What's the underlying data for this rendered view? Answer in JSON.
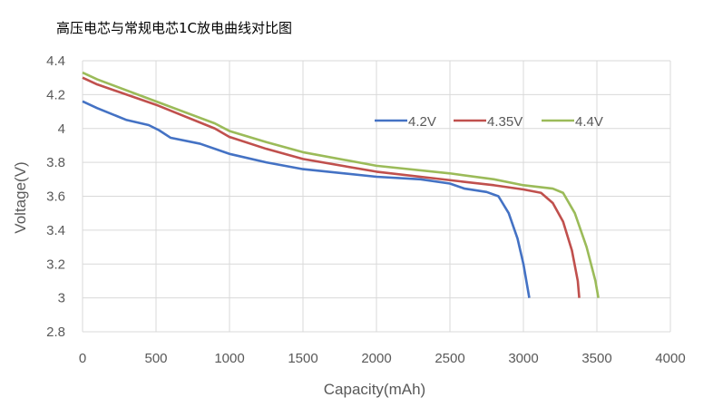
{
  "chart_data": {
    "type": "line",
    "title": "高压电芯与常规电芯1C放电曲线对比图",
    "xlabel": "Capacity(mAh)",
    "ylabel": "Voltage(V)",
    "xlim": [
      0,
      4000
    ],
    "ylim": [
      2.8,
      4.4
    ],
    "xticks": [
      "0",
      "500",
      "1000",
      "1500",
      "2000",
      "2500",
      "3000",
      "3500",
      "4000"
    ],
    "yticks": [
      "2.8",
      "3",
      "3.2",
      "3.4",
      "3.6",
      "3.8",
      "4",
      "4.2",
      "4.4"
    ],
    "grid": true,
    "legend": "top-right",
    "series": [
      {
        "name": "4.2V",
        "color": "#4472c4",
        "points": [
          [
            0,
            4.16
          ],
          [
            100,
            4.12
          ],
          [
            300,
            4.05
          ],
          [
            450,
            4.02
          ],
          [
            520,
            3.99
          ],
          [
            600,
            3.945
          ],
          [
            800,
            3.91
          ],
          [
            1000,
            3.85
          ],
          [
            1250,
            3.8
          ],
          [
            1500,
            3.76
          ],
          [
            2000,
            3.715
          ],
          [
            2300,
            3.7
          ],
          [
            2500,
            3.675
          ],
          [
            2600,
            3.645
          ],
          [
            2750,
            3.625
          ],
          [
            2830,
            3.6
          ],
          [
            2900,
            3.5
          ],
          [
            2960,
            3.35
          ],
          [
            3000,
            3.2
          ],
          [
            3030,
            3.05
          ],
          [
            3040,
            3.0
          ]
        ]
      },
      {
        "name": "4.35V",
        "color": "#c0504d",
        "points": [
          [
            0,
            4.3
          ],
          [
            100,
            4.26
          ],
          [
            500,
            4.14
          ],
          [
            900,
            4.0
          ],
          [
            1000,
            3.95
          ],
          [
            1250,
            3.88
          ],
          [
            1500,
            3.82
          ],
          [
            2000,
            3.745
          ],
          [
            2500,
            3.695
          ],
          [
            2800,
            3.665
          ],
          [
            3000,
            3.64
          ],
          [
            3120,
            3.62
          ],
          [
            3200,
            3.56
          ],
          [
            3270,
            3.45
          ],
          [
            3330,
            3.28
          ],
          [
            3370,
            3.1
          ],
          [
            3380,
            3.0
          ]
        ]
      },
      {
        "name": "4.4V",
        "color": "#9bbb59",
        "points": [
          [
            0,
            4.33
          ],
          [
            100,
            4.29
          ],
          [
            500,
            4.16
          ],
          [
            900,
            4.03
          ],
          [
            1000,
            3.985
          ],
          [
            1250,
            3.92
          ],
          [
            1500,
            3.86
          ],
          [
            2000,
            3.78
          ],
          [
            2500,
            3.735
          ],
          [
            2800,
            3.7
          ],
          [
            3000,
            3.665
          ],
          [
            3200,
            3.645
          ],
          [
            3270,
            3.62
          ],
          [
            3350,
            3.5
          ],
          [
            3430,
            3.3
          ],
          [
            3490,
            3.1
          ],
          [
            3510,
            3.0
          ]
        ]
      }
    ]
  }
}
